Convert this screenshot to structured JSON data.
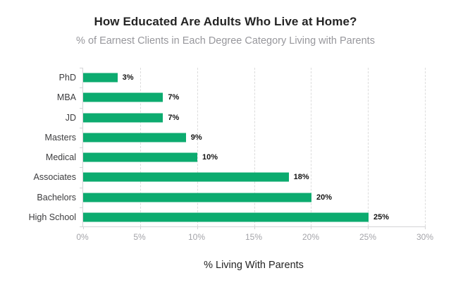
{
  "chart_data": {
    "type": "bar",
    "orientation": "horizontal",
    "title": "How Educated Are Adults Who Live at Home?",
    "subtitle": "% of Earnest Clients in Each Degree Category Living with Parents",
    "categories": [
      "PhD",
      "MBA",
      "JD",
      "Masters",
      "Medical",
      "Associates",
      "Bachelors",
      "High School"
    ],
    "values": [
      3,
      7,
      7,
      9,
      10,
      18,
      20,
      25
    ],
    "value_labels": [
      "3%",
      "7%",
      "7%",
      "9%",
      "10%",
      "18%",
      "20%",
      "25%"
    ],
    "xlabel": "% Living With Parents",
    "ylabel": "",
    "xlim": [
      0,
      30
    ],
    "x_ticks": [
      {
        "value": 0,
        "label": "0%"
      },
      {
        "value": 5,
        "label": "5%"
      },
      {
        "value": 10,
        "label": "10%"
      },
      {
        "value": 15,
        "label": "15%"
      },
      {
        "value": 20,
        "label": "20%"
      },
      {
        "value": 25,
        "label": "25%"
      },
      {
        "value": 30,
        "label": "30%"
      }
    ],
    "grid": "vertical-dashed",
    "legend": "none"
  },
  "colors": {
    "background": "#ffffff",
    "bar": "#0cab6f",
    "grid": "#dcdcdc",
    "axis": "#d4d4d6",
    "title": "#242424",
    "subtitle": "#97979c",
    "category_label": "#3c3c3e",
    "value_label": "#141414",
    "tick_label": "#a4a4a9",
    "xlabel": "#242424"
  }
}
